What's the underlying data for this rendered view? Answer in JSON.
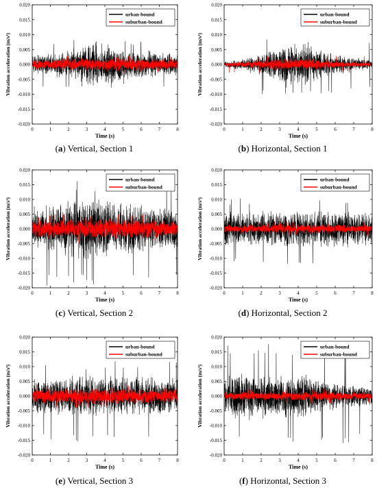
{
  "colors": {
    "urban": "#000000",
    "suburban": "#ff0000",
    "axis": "#000000",
    "background": "#ffffff"
  },
  "chart_data": [
    {
      "id": "a",
      "type": "line",
      "caption_label": "a",
      "caption_text": " Vertical, Section 1",
      "xlabel": "Time (s)",
      "ylabel": "Vibration acceleration (m/s²)",
      "xlim": [
        0,
        8
      ],
      "ylim": [
        -0.02,
        0.02
      ],
      "xticks": [
        "0",
        "1",
        "2",
        "3",
        "4",
        "5",
        "6",
        "7",
        "8"
      ],
      "yticks": [
        "-0.020",
        "-0.015",
        "-0.010",
        "-0.005",
        "0.000",
        "0.005",
        "0.010",
        "0.015",
        "0.020"
      ],
      "legend_position": "top-right",
      "grid": false,
      "series": [
        {
          "name": "urban-bound",
          "color": "#000000",
          "envelope": [
            [
              0,
              0.0035
            ],
            [
              1,
              0.004
            ],
            [
              2,
              0.005
            ],
            [
              3,
              0.007
            ],
            [
              3.5,
              0.008
            ],
            [
              4,
              0.0075
            ],
            [
              5,
              0.006
            ],
            [
              6,
              0.005
            ],
            [
              7,
              0.0045
            ],
            [
              8,
              0.004
            ]
          ],
          "peak_max": 0.0085,
          "peak_min": -0.008
        },
        {
          "name": "suburban-bound",
          "color": "#ff0000",
          "envelope": [
            [
              0,
              0.0018
            ],
            [
              2,
              0.0022
            ],
            [
              4,
              0.0025
            ],
            [
              6,
              0.0022
            ],
            [
              8,
              0.0018
            ]
          ],
          "peak_max": 0.003,
          "peak_min": -0.003
        }
      ]
    },
    {
      "id": "b",
      "type": "line",
      "caption_label": "b",
      "caption_text": " Horizontal, Section 1",
      "xlabel": "Time (s)",
      "ylabel": "Vibration acceleration (m/s²)",
      "xlim": [
        0,
        8
      ],
      "ylim": [
        -0.02,
        0.02
      ],
      "xticks": [
        "0",
        "1",
        "2",
        "3",
        "4",
        "5",
        "6",
        "7",
        "8"
      ],
      "yticks": [
        "-0.020",
        "-0.015",
        "-0.010",
        "-0.005",
        "0.000",
        "0.005",
        "0.010",
        "0.015",
        "0.020"
      ],
      "legend_position": "top-right",
      "grid": false,
      "series": [
        {
          "name": "urban-bound",
          "color": "#000000",
          "envelope": [
            [
              0,
              0.001
            ],
            [
              1,
              0.002
            ],
            [
              2,
              0.004
            ],
            [
              3,
              0.006
            ],
            [
              3.5,
              0.008
            ],
            [
              4.5,
              0.007
            ],
            [
              5.5,
              0.005
            ],
            [
              6.5,
              0.003
            ],
            [
              7.5,
              0.002
            ],
            [
              8,
              0.0015
            ]
          ],
          "peak_max": 0.009,
          "peak_min": -0.01
        },
        {
          "name": "suburban-bound",
          "color": "#ff0000",
          "envelope": [
            [
              0,
              0.0005
            ],
            [
              2,
              0.0015
            ],
            [
              3.5,
              0.0025
            ],
            [
              5,
              0.0018
            ],
            [
              6.5,
              0.001
            ],
            [
              8,
              0.0008
            ]
          ],
          "peak_max": 0.003,
          "peak_min": -0.003
        }
      ]
    },
    {
      "id": "c",
      "type": "line",
      "caption_label": "c",
      "caption_text": " Vertical, Section 2",
      "xlabel": "Time (s)",
      "ylabel": "Vibration acceleration (m/s²)",
      "xlim": [
        0,
        8
      ],
      "ylim": [
        -0.02,
        0.02
      ],
      "xticks": [
        "0",
        "1",
        "2",
        "3",
        "4",
        "5",
        "6",
        "7",
        "8"
      ],
      "yticks": [
        "-0.020",
        "-0.015",
        "-0.010",
        "-0.005",
        "0.000",
        "0.005",
        "0.010",
        "0.015",
        "0.020"
      ],
      "legend_position": "top-right",
      "grid": false,
      "series": [
        {
          "name": "urban-bound",
          "color": "#000000",
          "envelope": [
            [
              0,
              0.008
            ],
            [
              1,
              0.009
            ],
            [
              2,
              0.01
            ],
            [
              3,
              0.011
            ],
            [
              4,
              0.01
            ],
            [
              5,
              0.009
            ],
            [
              6,
              0.009
            ],
            [
              7,
              0.008
            ],
            [
              8,
              0.008
            ]
          ],
          "peak_max": 0.017,
          "peak_min": -0.02
        },
        {
          "name": "suburban-bound",
          "color": "#ff0000",
          "envelope": [
            [
              0,
              0.003
            ],
            [
              2,
              0.0035
            ],
            [
              3,
              0.004
            ],
            [
              5,
              0.0035
            ],
            [
              8,
              0.003
            ]
          ],
          "peak_max": 0.005,
          "peak_min": -0.005
        }
      ]
    },
    {
      "id": "d",
      "type": "line",
      "caption_label": "d",
      "caption_text": " Horizontal, Section 2",
      "xlabel": "Time (s)",
      "ylabel": "Vibration acceleration (m/s²)",
      "xlim": [
        0,
        8
      ],
      "ylim": [
        -0.02,
        0.02
      ],
      "xticks": [
        "0",
        "1",
        "2",
        "3",
        "4",
        "5",
        "6",
        "7",
        "8"
      ],
      "yticks": [
        "-0.020",
        "-0.015",
        "-0.010",
        "-0.005",
        "0.000",
        "0.005",
        "0.010",
        "0.015",
        "0.020"
      ],
      "legend_position": "top-right",
      "grid": false,
      "series": [
        {
          "name": "urban-bound",
          "color": "#000000",
          "envelope": [
            [
              0,
              0.006
            ],
            [
              2,
              0.0065
            ],
            [
              4,
              0.007
            ],
            [
              6,
              0.0065
            ],
            [
              8,
              0.006
            ]
          ],
          "peak_max": 0.011,
          "peak_min": -0.012
        },
        {
          "name": "suburban-bound",
          "color": "#ff0000",
          "envelope": [
            [
              0,
              0.0015
            ],
            [
              4,
              0.0018
            ],
            [
              8,
              0.0015
            ]
          ],
          "peak_max": 0.0025,
          "peak_min": -0.0025
        }
      ]
    },
    {
      "id": "e",
      "type": "line",
      "caption_label": "e",
      "caption_text": " Vertical, Section 3",
      "xlabel": "Time (s)",
      "ylabel": "Vibration acceleration (m/s²)",
      "xlim": [
        0,
        8
      ],
      "ylim": [
        -0.02,
        0.02
      ],
      "xticks": [
        "0",
        "1",
        "2",
        "3",
        "4",
        "5",
        "6",
        "7",
        "8"
      ],
      "yticks": [
        "-0.020",
        "-0.015",
        "-0.010",
        "-0.005",
        "0.000",
        "0.005",
        "0.010",
        "0.015",
        "0.020"
      ],
      "legend_position": "top-right",
      "grid": false,
      "series": [
        {
          "name": "urban-bound",
          "color": "#000000",
          "envelope": [
            [
              0,
              0.0065
            ],
            [
              2,
              0.007
            ],
            [
              3.5,
              0.0075
            ],
            [
              5,
              0.007
            ],
            [
              8,
              0.0065
            ]
          ],
          "peak_max": 0.012,
          "peak_min": -0.016
        },
        {
          "name": "suburban-bound",
          "color": "#ff0000",
          "envelope": [
            [
              0,
              0.0025
            ],
            [
              4,
              0.003
            ],
            [
              8,
              0.0025
            ]
          ],
          "peak_max": 0.004,
          "peak_min": -0.004
        }
      ]
    },
    {
      "id": "f",
      "type": "line",
      "caption_label": "f",
      "caption_text": " Horizontal, Section 3",
      "xlabel": "Time (s)",
      "ylabel": "Vibration acceleration (m/s²)",
      "xlim": [
        0,
        8
      ],
      "ylim": [
        -0.02,
        0.02
      ],
      "xticks": [
        "0",
        "1",
        "2",
        "3",
        "4",
        "5",
        "6",
        "7",
        "8"
      ],
      "yticks": [
        "-0.020",
        "-0.015",
        "-0.010",
        "-0.005",
        "0.000",
        "0.005",
        "0.010",
        "0.015",
        "0.020"
      ],
      "legend_position": "top-right",
      "grid": false,
      "series": [
        {
          "name": "urban-bound",
          "color": "#000000",
          "envelope": [
            [
              0,
              0.007
            ],
            [
              1,
              0.009
            ],
            [
              2,
              0.008
            ],
            [
              3,
              0.007
            ],
            [
              4,
              0.008
            ],
            [
              4.5,
              0.009
            ],
            [
              5,
              0.006
            ],
            [
              6,
              0.005
            ],
            [
              7,
              0.004
            ],
            [
              8,
              0.0035
            ]
          ],
          "peak_max": 0.0185,
          "peak_min": -0.016
        },
        {
          "name": "suburban-bound",
          "color": "#ff0000",
          "envelope": [
            [
              0,
              0.0015
            ],
            [
              4,
              0.0018
            ],
            [
              8,
              0.0015
            ]
          ],
          "peak_max": 0.0025,
          "peak_min": -0.0025
        }
      ]
    }
  ]
}
